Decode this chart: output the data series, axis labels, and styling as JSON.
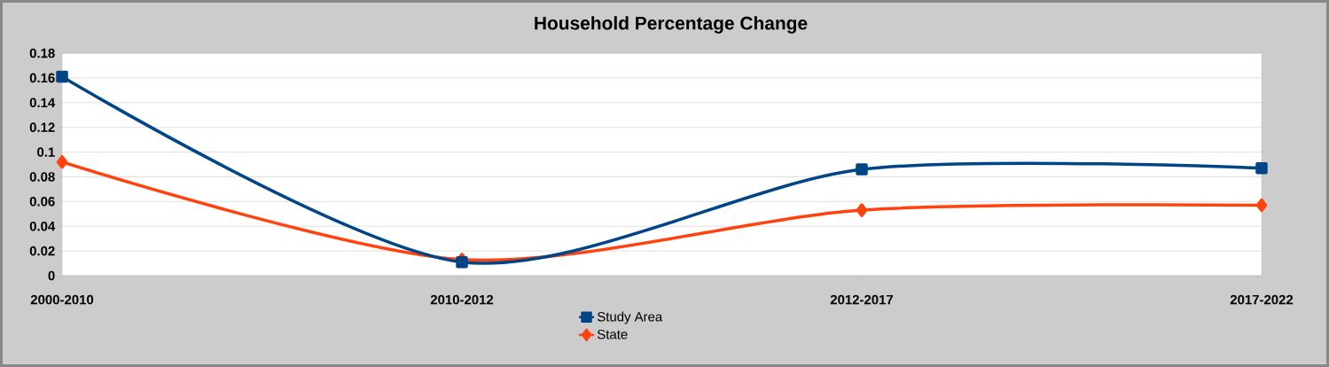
{
  "chart_data": {
    "type": "line",
    "title": "Household Percentage Change",
    "categories": [
      "2000-2010",
      "2010-2012",
      "2012-2017",
      "2017-2022"
    ],
    "series": [
      {
        "name": "Study Area",
        "color": "#004586",
        "marker": "square",
        "values": [
          0.161,
          0.011,
          0.086,
          0.087
        ]
      },
      {
        "name": "State",
        "color": "#ff420e",
        "marker": "diamond",
        "values": [
          0.092,
          0.013,
          0.053,
          0.057
        ]
      }
    ],
    "ylim": [
      0,
      0.18
    ],
    "yticks": [
      0,
      0.02,
      0.04,
      0.06,
      0.08,
      0.1,
      0.12,
      0.14,
      0.16,
      0.18
    ],
    "grid": "y",
    "legend": "bottom",
    "line_style": "solid"
  }
}
